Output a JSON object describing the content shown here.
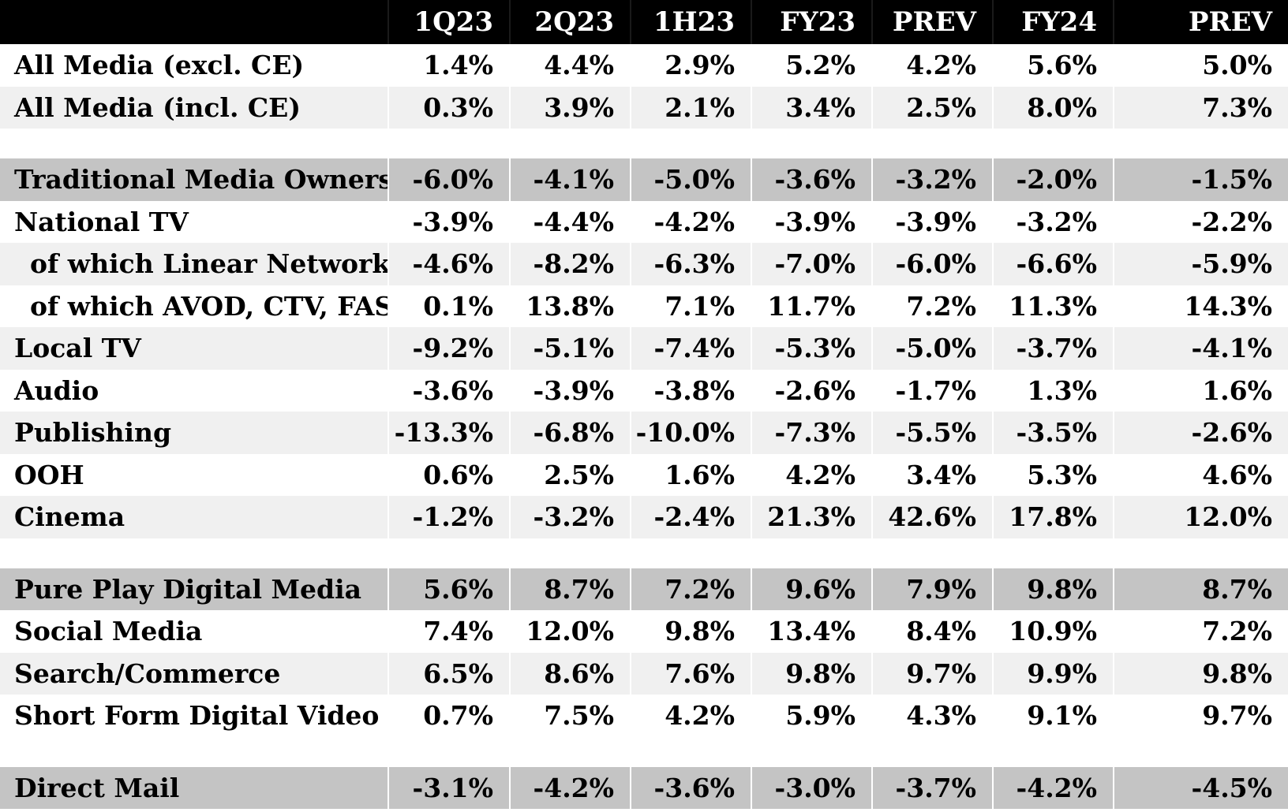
{
  "chart_data": {
    "type": "table",
    "columns": [
      "",
      "1Q23",
      "2Q23",
      "1H23",
      "FY23",
      "PREV",
      "FY24",
      "PREV"
    ],
    "groups": [
      {
        "rows": [
          {
            "label": "All Media (excl. CE)",
            "values": [
              "1.4%",
              "4.4%",
              "2.9%",
              "5.2%",
              "4.2%",
              "5.6%",
              "5.0%"
            ]
          },
          {
            "label": "All Media (incl. CE)",
            "values": [
              "0.3%",
              "3.9%",
              "2.1%",
              "3.4%",
              "2.5%",
              "8.0%",
              "7.3%"
            ]
          }
        ]
      },
      {
        "total": {
          "label": "Traditional Media Owners",
          "values": [
            "-6.0%",
            "-4.1%",
            "-5.0%",
            "-3.6%",
            "-3.2%",
            "-2.0%",
            "-1.5%"
          ]
        },
        "rows": [
          {
            "label": "National TV",
            "values": [
              "-3.9%",
              "-4.4%",
              "-4.2%",
              "-3.9%",
              "-3.9%",
              "-3.2%",
              "-2.2%"
            ]
          },
          {
            "label": "of which Linear Networks",
            "sub": true,
            "values": [
              "-4.6%",
              "-8.2%",
              "-6.3%",
              "-7.0%",
              "-6.0%",
              "-6.6%",
              "-5.9%"
            ]
          },
          {
            "label": "of which AVOD, CTV, FAST",
            "sub": true,
            "values": [
              "0.1%",
              "13.8%",
              "7.1%",
              "11.7%",
              "7.2%",
              "11.3%",
              "14.3%"
            ]
          },
          {
            "label": "Local TV",
            "values": [
              "-9.2%",
              "-5.1%",
              "-7.4%",
              "-5.3%",
              "-5.0%",
              "-3.7%",
              "-4.1%"
            ]
          },
          {
            "label": "Audio",
            "values": [
              "-3.6%",
              "-3.9%",
              "-3.8%",
              "-2.6%",
              "-1.7%",
              "1.3%",
              "1.6%"
            ]
          },
          {
            "label": "Publishing",
            "values": [
              "-13.3%",
              "-6.8%",
              "-10.0%",
              "-7.3%",
              "-5.5%",
              "-3.5%",
              "-2.6%"
            ]
          },
          {
            "label": "OOH",
            "values": [
              "0.6%",
              "2.5%",
              "1.6%",
              "4.2%",
              "3.4%",
              "5.3%",
              "4.6%"
            ]
          },
          {
            "label": "Cinema",
            "values": [
              "-1.2%",
              "-3.2%",
              "-2.4%",
              "21.3%",
              "42.6%",
              "17.8%",
              "12.0%"
            ]
          }
        ]
      },
      {
        "total": {
          "label": "Pure Play Digital Media",
          "values": [
            "5.6%",
            "8.7%",
            "7.2%",
            "9.6%",
            "7.9%",
            "9.8%",
            "8.7%"
          ]
        },
        "rows": [
          {
            "label": "Social Media",
            "values": [
              "7.4%",
              "12.0%",
              "9.8%",
              "13.4%",
              "8.4%",
              "10.9%",
              "7.2%"
            ]
          },
          {
            "label": "Search/Commerce",
            "values": [
              "6.5%",
              "8.6%",
              "7.6%",
              "9.8%",
              "9.7%",
              "9.9%",
              "9.8%"
            ]
          },
          {
            "label": "Short Form Digital Video",
            "values": [
              "0.7%",
              "7.5%",
              "4.2%",
              "5.9%",
              "4.3%",
              "9.1%",
              "9.7%"
            ]
          }
        ]
      },
      {
        "total": {
          "label": "Direct Mail",
          "values": [
            "-3.1%",
            "-4.2%",
            "-3.6%",
            "-3.0%",
            "-3.7%",
            "-4.2%",
            "-4.5%"
          ]
        },
        "rows": []
      }
    ]
  }
}
